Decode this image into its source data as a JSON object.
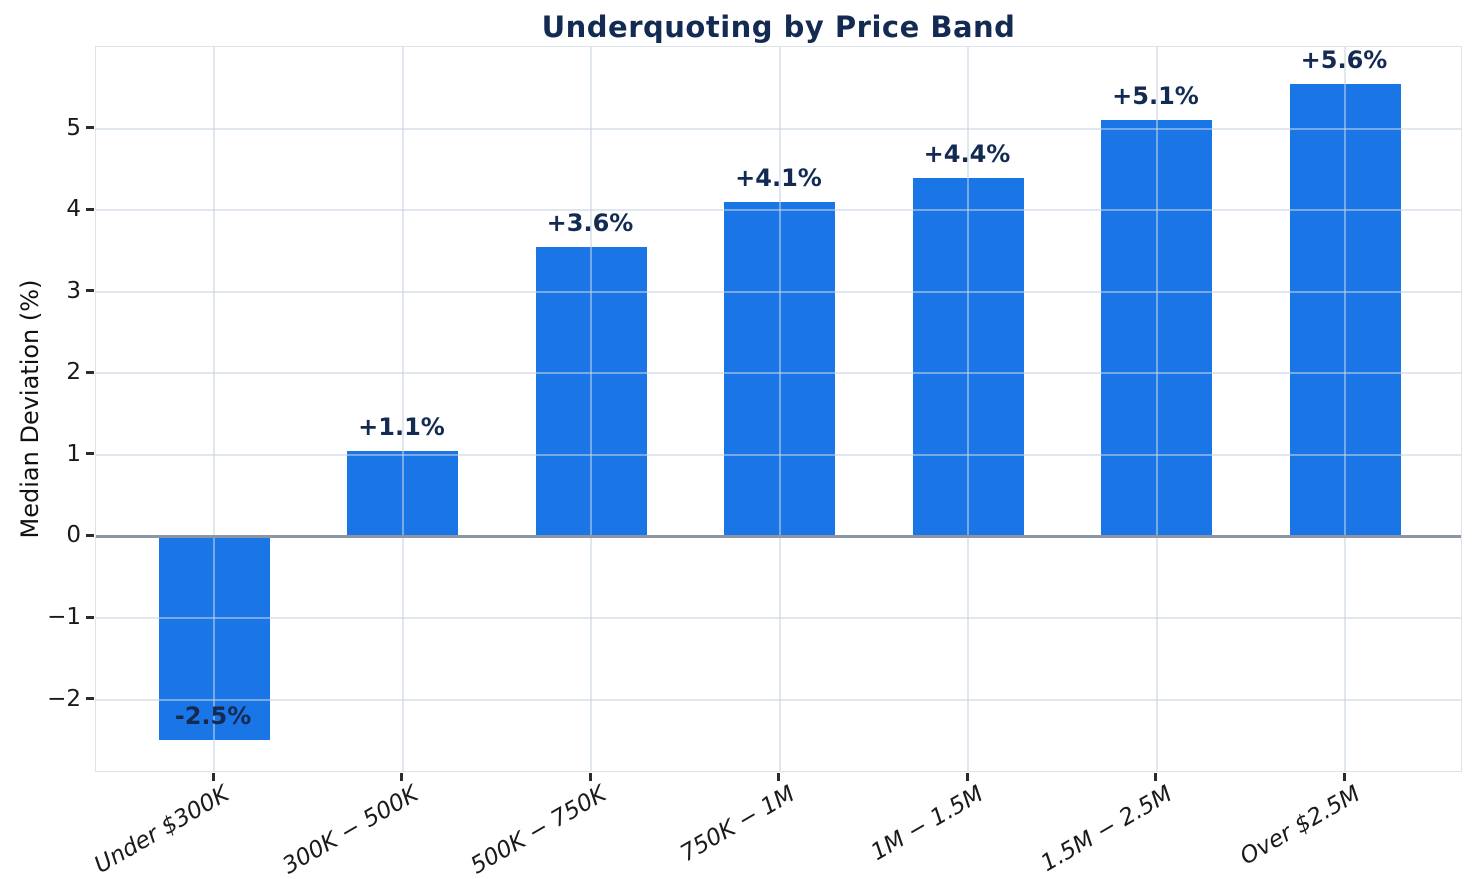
{
  "chart_data": {
    "type": "bar",
    "title": "Underquoting by Price Band",
    "xlabel": "",
    "ylabel": "Median Deviation (%)",
    "categories": [
      "Under $300K",
      "300K − 500K",
      "500K − 750K",
      "750K − 1M",
      "1M − 1.5M",
      "1.5M − 2.5M",
      "Over $2.5M"
    ],
    "values": [
      -2.5,
      1.05,
      3.55,
      4.1,
      4.4,
      5.1,
      5.55
    ],
    "bar_labels": [
      "-2.5%",
      "+1.1%",
      "+3.6%",
      "+4.1%",
      "+4.4%",
      "+5.1%",
      "+5.6%"
    ],
    "ylim": [
      -2.9,
      6.0
    ],
    "yticks": [
      -2,
      -1,
      0,
      1,
      2,
      3,
      4,
      5
    ],
    "ytick_labels": [
      "−2",
      "−1",
      "0",
      "1",
      "2",
      "3",
      "4",
      "5"
    ],
    "grid": true,
    "legend": "none",
    "colors": {
      "bar": "#1a76e6",
      "title": "#132a52",
      "value_label": "#132a52",
      "grid_line": "rgba(199,211,225,0.55)",
      "zero_line": "#8b95a3",
      "tick_mark": "#2b2b2b",
      "tick_label": "#1a1a1a"
    }
  }
}
